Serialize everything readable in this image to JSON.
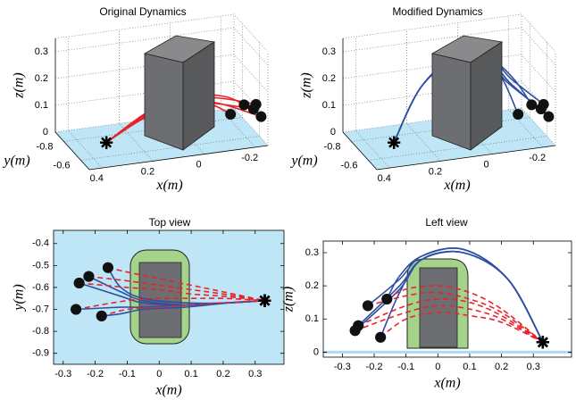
{
  "chart_data": [
    {
      "type": "line3d",
      "title": "Original Dynamics",
      "x_label": "x(m)",
      "y_label": "y(m)",
      "z_label": "z(m)",
      "xlim": [
        -0.25,
        0.45
      ],
      "ylim": [
        -0.9,
        -0.5
      ],
      "zlim": [
        0,
        0.35
      ],
      "xticks": [
        -0.2,
        0,
        0.2,
        0.4
      ],
      "yticks": [
        -0.8,
        -0.6
      ],
      "zticks": [
        0,
        0.1,
        0.2,
        0.3
      ],
      "grid": true,
      "floor_color": "#bfe6f6",
      "series": [
        {
          "color": "#e8232a",
          "line_style": "solid",
          "x": [
            -0.16,
            -0.1,
            0,
            0.1,
            0.2,
            0.33
          ],
          "y": [
            -0.51,
            -0.53,
            -0.56,
            -0.59,
            -0.62,
            -0.66
          ],
          "z": [
            0.16,
            0.19,
            0.2,
            0.18,
            0.13,
            0.03
          ]
        },
        {
          "color": "#e8232a",
          "line_style": "solid",
          "x": [
            -0.22,
            -0.1,
            0,
            0.1,
            0.2,
            0.33
          ],
          "y": [
            -0.55,
            -0.57,
            -0.59,
            -0.61,
            -0.63,
            -0.66
          ],
          "z": [
            0.14,
            0.17,
            0.18,
            0.16,
            0.12,
            0.03
          ]
        },
        {
          "color": "#e8232a",
          "line_style": "solid",
          "x": [
            -0.25,
            -0.1,
            0,
            0.1,
            0.2,
            0.33
          ],
          "y": [
            -0.58,
            -0.6,
            -0.61,
            -0.63,
            -0.64,
            -0.66
          ],
          "z": [
            0.08,
            0.14,
            0.16,
            0.15,
            0.11,
            0.03
          ]
        },
        {
          "color": "#e8232a",
          "line_style": "solid",
          "x": [
            -0.26,
            -0.1,
            0,
            0.1,
            0.2,
            0.33
          ],
          "y": [
            -0.7,
            -0.66,
            -0.65,
            -0.65,
            -0.65,
            -0.66
          ],
          "z": [
            0.065,
            0.12,
            0.14,
            0.13,
            0.1,
            0.03
          ]
        },
        {
          "color": "#e8232a",
          "line_style": "solid",
          "x": [
            -0.18,
            -0.1,
            0,
            0.1,
            0.2,
            0.33
          ],
          "y": [
            -0.73,
            -0.7,
            -0.69,
            -0.68,
            -0.67,
            -0.66
          ],
          "z": [
            0.045,
            0.1,
            0.12,
            0.11,
            0.09,
            0.03
          ]
        }
      ]
    },
    {
      "type": "line3d",
      "title": "Modified Dynamics",
      "x_label": "x(m)",
      "y_label": "y(m)",
      "z_label": "z(m)",
      "xlim": [
        -0.25,
        0.45
      ],
      "ylim": [
        -0.9,
        -0.5
      ],
      "zlim": [
        0,
        0.35
      ],
      "xticks": [
        -0.2,
        0,
        0.2,
        0.4
      ],
      "yticks": [
        -0.8,
        -0.6
      ],
      "zticks": [
        0,
        0.1,
        0.2,
        0.3
      ],
      "grid": true,
      "floor_color": "#bfe6f6",
      "series": [
        {
          "color": "#2e4fa3",
          "line_style": "solid",
          "x": [
            -0.16,
            -0.12,
            -0.05,
            0.08,
            0.22,
            0.33
          ],
          "y": [
            -0.51,
            -0.6,
            -0.65,
            -0.67,
            -0.67,
            -0.66
          ],
          "z": [
            0.16,
            0.23,
            0.29,
            0.31,
            0.22,
            0.03
          ]
        },
        {
          "color": "#2e4fa3",
          "line_style": "solid",
          "x": [
            -0.22,
            -0.12,
            -0.05,
            0.08,
            0.22,
            0.33
          ],
          "y": [
            -0.55,
            -0.62,
            -0.66,
            -0.68,
            -0.67,
            -0.66
          ],
          "z": [
            0.14,
            0.22,
            0.29,
            0.31,
            0.22,
            0.03
          ]
        },
        {
          "color": "#2e4fa3",
          "line_style": "solid",
          "x": [
            -0.25,
            -0.12,
            -0.05,
            0.08,
            0.22,
            0.33
          ],
          "y": [
            -0.58,
            -0.64,
            -0.67,
            -0.68,
            -0.67,
            -0.66
          ],
          "z": [
            0.08,
            0.2,
            0.28,
            0.3,
            0.22,
            0.03
          ]
        },
        {
          "color": "#2e4fa3",
          "line_style": "solid",
          "x": [
            -0.26,
            -0.12,
            -0.05,
            0.08,
            0.22,
            0.33
          ],
          "y": [
            -0.7,
            -0.69,
            -0.69,
            -0.68,
            -0.67,
            -0.66
          ],
          "z": [
            0.065,
            0.19,
            0.28,
            0.3,
            0.22,
            0.03
          ]
        },
        {
          "color": "#2e4fa3",
          "line_style": "solid",
          "x": [
            -0.18,
            -0.12,
            -0.05,
            0.08,
            0.22,
            0.33
          ],
          "y": [
            -0.73,
            -0.72,
            -0.7,
            -0.69,
            -0.67,
            -0.66
          ],
          "z": [
            0.045,
            0.18,
            0.28,
            0.3,
            0.22,
            0.03
          ]
        }
      ]
    },
    {
      "type": "line",
      "title": "Top view",
      "x_label": "x(m)",
      "y_label": "y(m)",
      "xlim": [
        -0.33,
        0.39
      ],
      "ylim": [
        -0.95,
        -0.34
      ],
      "xticks": [
        -0.3,
        -0.2,
        -0.1,
        0,
        0.1,
        0.2,
        0.3
      ],
      "yticks": [
        -0.9,
        -0.8,
        -0.7,
        -0.6,
        -0.5,
        -0.4
      ],
      "background": "#bfe6f6",
      "series": [
        {
          "color": "#2e4fa3",
          "line_style": "solid",
          "x": [
            -0.16,
            -0.12,
            -0.05,
            0.08,
            0.22,
            0.33
          ],
          "y": [
            -0.51,
            -0.6,
            -0.65,
            -0.67,
            -0.67,
            -0.66
          ]
        },
        {
          "color": "#2e4fa3",
          "line_style": "solid",
          "x": [
            -0.22,
            -0.12,
            -0.05,
            0.08,
            0.22,
            0.33
          ],
          "y": [
            -0.55,
            -0.62,
            -0.66,
            -0.68,
            -0.67,
            -0.66
          ]
        },
        {
          "color": "#2e4fa3",
          "line_style": "solid",
          "x": [
            -0.25,
            -0.12,
            -0.05,
            0.08,
            0.22,
            0.33
          ],
          "y": [
            -0.58,
            -0.64,
            -0.67,
            -0.68,
            -0.67,
            -0.66
          ]
        },
        {
          "color": "#2e4fa3",
          "line_style": "solid",
          "x": [
            -0.26,
            -0.12,
            -0.05,
            0.08,
            0.22,
            0.33
          ],
          "y": [
            -0.7,
            -0.69,
            -0.69,
            -0.68,
            -0.67,
            -0.66
          ]
        },
        {
          "color": "#2e4fa3",
          "line_style": "solid",
          "x": [
            -0.18,
            -0.12,
            -0.05,
            0.08,
            0.22,
            0.33
          ],
          "y": [
            -0.73,
            -0.72,
            -0.7,
            -0.69,
            -0.67,
            -0.66
          ]
        },
        {
          "color": "#e8232a",
          "line_style": "dashed",
          "x": [
            -0.16,
            -0.1,
            0,
            0.1,
            0.2,
            0.33
          ],
          "y": [
            -0.51,
            -0.53,
            -0.56,
            -0.59,
            -0.62,
            -0.66
          ]
        },
        {
          "color": "#e8232a",
          "line_style": "dashed",
          "x": [
            -0.22,
            -0.1,
            0,
            0.1,
            0.2,
            0.33
          ],
          "y": [
            -0.55,
            -0.57,
            -0.59,
            -0.61,
            -0.63,
            -0.66
          ]
        },
        {
          "color": "#e8232a",
          "line_style": "dashed",
          "x": [
            -0.25,
            -0.1,
            0,
            0.1,
            0.2,
            0.33
          ],
          "y": [
            -0.58,
            -0.6,
            -0.61,
            -0.63,
            -0.64,
            -0.66
          ]
        },
        {
          "color": "#e8232a",
          "line_style": "dashed",
          "x": [
            -0.26,
            -0.1,
            0,
            0.1,
            0.2,
            0.33
          ],
          "y": [
            -0.7,
            -0.66,
            -0.65,
            -0.65,
            -0.65,
            -0.66
          ]
        },
        {
          "color": "#e8232a",
          "line_style": "dashed",
          "x": [
            -0.18,
            -0.1,
            0,
            0.1,
            0.2,
            0.33
          ],
          "y": [
            -0.73,
            -0.7,
            -0.69,
            -0.68,
            -0.67,
            -0.66
          ]
        }
      ]
    },
    {
      "type": "line",
      "title": "Left view",
      "x_label": "x(m)",
      "y_label": "z(m)",
      "xlim": [
        -0.36,
        0.42
      ],
      "ylim": [
        -0.015,
        0.335
      ],
      "xticks": [
        -0.3,
        -0.2,
        -0.1,
        0,
        0.1,
        0.2,
        0.3
      ],
      "yticks": [
        0,
        0.1,
        0.2,
        0.3
      ],
      "floor_color": "#a9dcf2",
      "series": [
        {
          "color": "#2e4fa3",
          "line_style": "solid",
          "x": [
            -0.16,
            -0.12,
            -0.05,
            0.08,
            0.22,
            0.33
          ],
          "y": [
            0.16,
            0.23,
            0.29,
            0.31,
            0.22,
            0.03
          ]
        },
        {
          "color": "#2e4fa3",
          "line_style": "solid",
          "x": [
            -0.22,
            -0.12,
            -0.05,
            0.08,
            0.22,
            0.33
          ],
          "y": [
            0.14,
            0.22,
            0.29,
            0.31,
            0.22,
            0.03
          ]
        },
        {
          "color": "#2e4fa3",
          "line_style": "solid",
          "x": [
            -0.25,
            -0.12,
            -0.05,
            0.08,
            0.22,
            0.33
          ],
          "y": [
            0.08,
            0.2,
            0.28,
            0.3,
            0.22,
            0.03
          ]
        },
        {
          "color": "#2e4fa3",
          "line_style": "solid",
          "x": [
            -0.26,
            -0.12,
            -0.05,
            0.08,
            0.22,
            0.33
          ],
          "y": [
            0.065,
            0.19,
            0.28,
            0.3,
            0.22,
            0.03
          ]
        },
        {
          "color": "#2e4fa3",
          "line_style": "solid",
          "x": [
            -0.18,
            -0.12,
            -0.05,
            0.08,
            0.22,
            0.33
          ],
          "y": [
            0.045,
            0.18,
            0.28,
            0.3,
            0.22,
            0.03
          ]
        },
        {
          "color": "#e8232a",
          "line_style": "dashed",
          "x": [
            -0.16,
            -0.1,
            0,
            0.1,
            0.2,
            0.33
          ],
          "y": [
            0.16,
            0.19,
            0.2,
            0.18,
            0.13,
            0.03
          ]
        },
        {
          "color": "#e8232a",
          "line_style": "dashed",
          "x": [
            -0.22,
            -0.1,
            0,
            0.1,
            0.2,
            0.33
          ],
          "y": [
            0.14,
            0.17,
            0.18,
            0.16,
            0.12,
            0.03
          ]
        },
        {
          "color": "#e8232a",
          "line_style": "dashed",
          "x": [
            -0.25,
            -0.1,
            0,
            0.1,
            0.2,
            0.33
          ],
          "y": [
            0.08,
            0.14,
            0.16,
            0.15,
            0.11,
            0.03
          ]
        },
        {
          "color": "#e8232a",
          "line_style": "dashed",
          "x": [
            -0.26,
            -0.1,
            0,
            0.1,
            0.2,
            0.33
          ],
          "y": [
            0.065,
            0.12,
            0.14,
            0.13,
            0.1,
            0.03
          ]
        },
        {
          "color": "#e8232a",
          "line_style": "dashed",
          "x": [
            -0.18,
            -0.1,
            0,
            0.1,
            0.2,
            0.33
          ],
          "y": [
            0.045,
            0.1,
            0.12,
            0.11,
            0.09,
            0.03
          ]
        }
      ]
    }
  ]
}
